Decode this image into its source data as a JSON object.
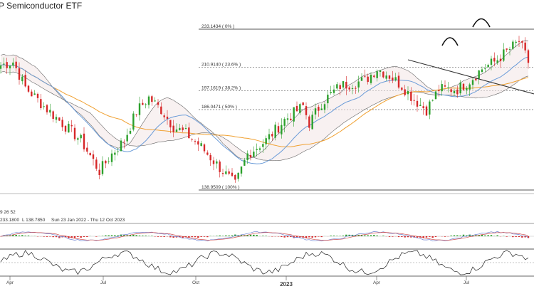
{
  "chart_data": {
    "type": "candlestick",
    "title": "P Semiconductor ETF",
    "x_ticks": [
      "Apr",
      "Jul",
      "Oct",
      "2023",
      "Apr",
      "Jul"
    ],
    "fib_levels": [
      {
        "price": 233.1434,
        "label": "233.1434 ( 0% )"
      },
      {
        "price": 210.914,
        "label": "210.9140 ( 23.6% )"
      },
      {
        "price": 197.1619,
        "label": "197.1619 ( 38.2% )"
      },
      {
        "price": 186.0471,
        "label": "186.0471 ( 50% )"
      },
      {
        "price": 138.9509,
        "label": "138.9509 ( 100% )"
      }
    ],
    "ichimoku_label": "9  26  52",
    "info_line": [
      "233.1800",
      "L 138.7850",
      "Sun 23 Jan 2022 - Thu 12 Oct 2023"
    ],
    "colors": {
      "up": "#2ca02c",
      "down": "#d62728",
      "ma_long": "#f0a030",
      "ma_short": "#6a9bd8",
      "cloud_line": "#666666",
      "grid": "#999999"
    }
  }
}
